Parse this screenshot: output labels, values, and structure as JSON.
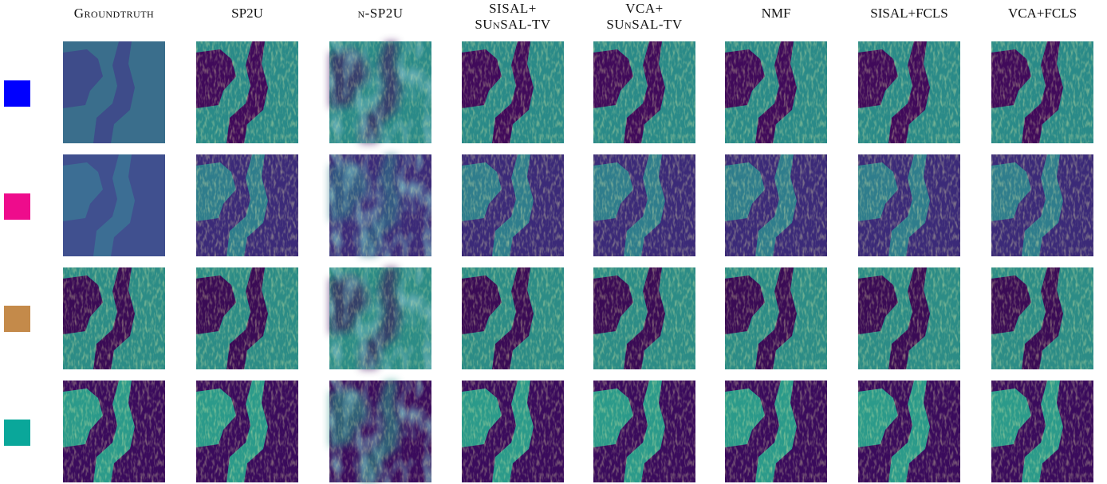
{
  "columns": [
    [
      "Groundtruth"
    ],
    [
      "SP2U"
    ],
    [
      "n-SP2U"
    ],
    [
      "SISAL+",
      "SUnSAL-TV"
    ],
    [
      "VCA+",
      "SUnSAL-TV"
    ],
    [
      "NMF"
    ],
    [
      "SISAL+FCLS"
    ],
    [
      "VCA+FCLS"
    ]
  ]
}
